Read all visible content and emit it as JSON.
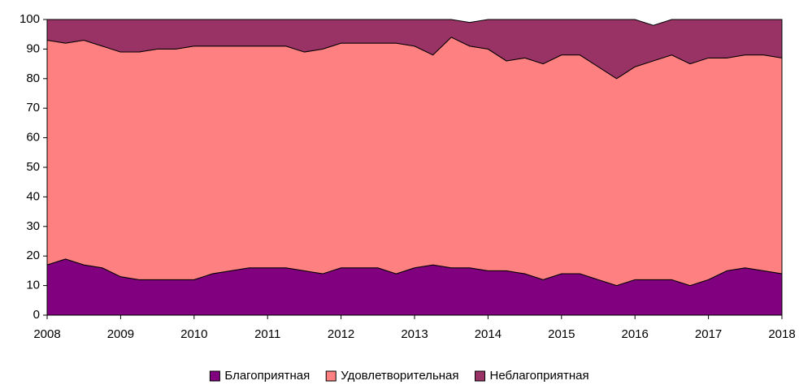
{
  "chart_data": {
    "type": "stacked_area",
    "x": [
      2008,
      2008.25,
      2008.5,
      2008.75,
      2009,
      2009.25,
      2009.5,
      2009.75,
      2010,
      2010.25,
      2010.5,
      2010.75,
      2011,
      2011.25,
      2011.5,
      2011.75,
      2012,
      2012.25,
      2012.5,
      2012.75,
      2013,
      2013.25,
      2013.5,
      2013.75,
      2014,
      2014.25,
      2014.5,
      2014.75,
      2015,
      2015.25,
      2015.5,
      2015.75,
      2016,
      2016.25,
      2016.5,
      2016.75,
      2017,
      2017.25,
      2017.5,
      2017.75,
      2018
    ],
    "series": [
      {
        "name": "Благоприятная",
        "color": "#800080",
        "values": [
          17,
          19,
          17,
          16,
          13,
          12,
          12,
          12,
          12,
          14,
          15,
          16,
          16,
          16,
          15,
          14,
          16,
          16,
          16,
          14,
          16,
          17,
          16,
          16,
          15,
          15,
          14,
          12,
          14,
          14,
          12,
          10,
          12,
          12,
          12,
          10,
          12,
          15,
          16,
          15,
          14
        ]
      },
      {
        "name": "Удовлетворительная",
        "color": "#ff8080",
        "values": [
          76,
          73,
          76,
          75,
          76,
          77,
          78,
          78,
          79,
          77,
          76,
          75,
          75,
          75,
          74,
          76,
          76,
          76,
          76,
          78,
          75,
          71,
          78,
          75,
          75,
          71,
          73,
          73,
          74,
          74,
          72,
          70,
          72,
          74,
          76,
          75,
          75,
          72,
          72,
          73,
          73
        ]
      },
      {
        "name": "Неблагоприятная",
        "color": "#993366",
        "values": [
          7,
          8,
          7,
          9,
          11,
          11,
          10,
          10,
          9,
          9,
          9,
          9,
          9,
          9,
          11,
          10,
          8,
          8,
          8,
          8,
          9,
          12,
          6,
          8,
          10,
          14,
          13,
          15,
          12,
          12,
          16,
          20,
          16,
          12,
          12,
          15,
          13,
          13,
          12,
          12,
          13
        ]
      }
    ],
    "xlim": [
      2008,
      2018
    ],
    "xticks": [
      2008,
      2009,
      2010,
      2011,
      2012,
      2013,
      2014,
      2015,
      2016,
      2017,
      2018
    ],
    "ylim": [
      0,
      100
    ],
    "yticks": [
      0,
      10,
      20,
      30,
      40,
      50,
      60,
      70,
      80,
      90,
      100
    ],
    "legend": "bottom"
  }
}
